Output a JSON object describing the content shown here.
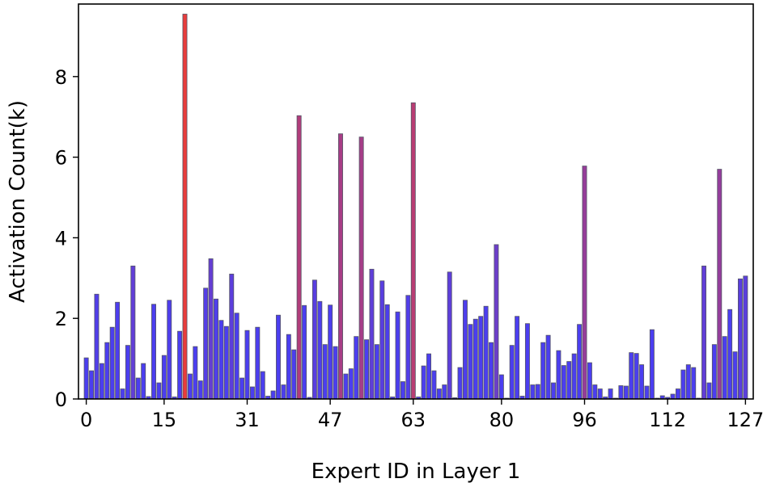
{
  "chart_data": {
    "type": "bar",
    "xlabel": "Expert ID in Layer 1",
    "ylabel": "Activation Count(k)",
    "xlim": [
      -1.5,
      128.5
    ],
    "ylim": [
      0,
      9.8
    ],
    "x_ticks": [
      0,
      15,
      31,
      47,
      63,
      80,
      96,
      112,
      127
    ],
    "y_ticks": [
      0,
      2,
      4,
      6,
      8
    ],
    "colors": {
      "low": "#4b3ef0",
      "high": "#e83c3c",
      "edge": "#555566"
    },
    "values": [
      1.02,
      0.7,
      2.6,
      0.88,
      1.4,
      1.78,
      2.4,
      0.25,
      1.33,
      3.3,
      0.52,
      0.88,
      0.06,
      2.35,
      0.4,
      1.08,
      2.45,
      0.05,
      1.68,
      9.55,
      0.62,
      1.3,
      0.45,
      2.75,
      3.48,
      2.48,
      1.95,
      1.8,
      3.1,
      2.13,
      0.52,
      1.7,
      0.3,
      1.78,
      0.68,
      0.07,
      0.2,
      2.08,
      0.35,
      1.6,
      1.22,
      7.03,
      2.32,
      0.04,
      2.95,
      2.42,
      1.35,
      2.33,
      1.3,
      6.58,
      0.62,
      0.75,
      1.55,
      6.5,
      1.47,
      3.22,
      1.35,
      2.93,
      2.34,
      0.05,
      2.16,
      0.43,
      2.57,
      7.35,
      0.05,
      0.82,
      1.12,
      0.7,
      0.25,
      0.35,
      3.15,
      0.03,
      0.78,
      2.45,
      1.85,
      1.98,
      2.05,
      2.3,
      1.4,
      3.83,
      0.6,
      0.02,
      1.33,
      2.05,
      0.07,
      1.87,
      0.35,
      0.36,
      1.4,
      1.58,
      0.4,
      1.2,
      0.83,
      0.93,
      1.12,
      1.85,
      5.78,
      0.9,
      0.35,
      0.25,
      0.05,
      0.25,
      0.02,
      0.33,
      0.32,
      1.15,
      1.13,
      0.85,
      0.32,
      1.72,
      0.02,
      0.08,
      0.04,
      0.12,
      0.25,
      0.72,
      0.85,
      0.78,
      0.02,
      3.3,
      0.4,
      1.35,
      5.7,
      1.55,
      2.22,
      1.17,
      2.98,
      3.05
    ]
  }
}
